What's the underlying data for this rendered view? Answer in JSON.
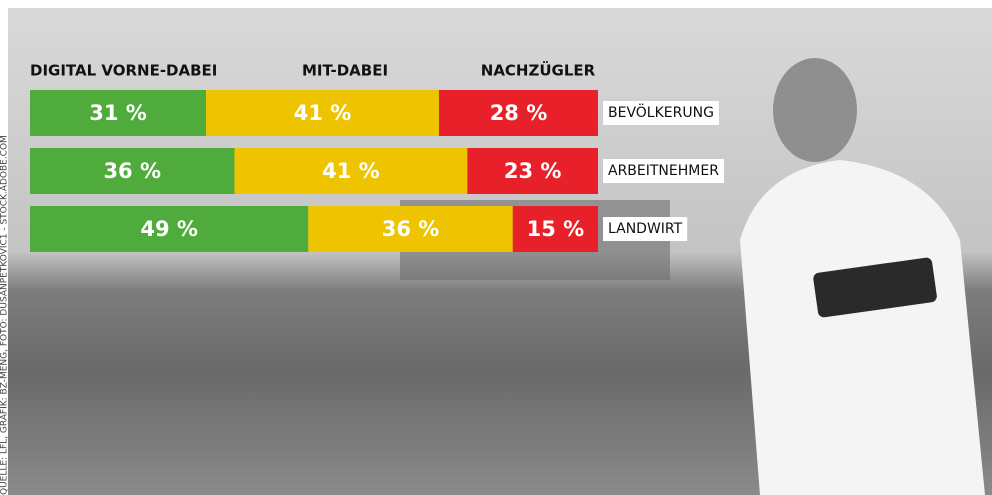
{
  "chart_data": {
    "type": "stacked-bar",
    "categories": [
      "BEVÖLKERUNG",
      "ARBEITNEHMER",
      "LANDWIRT"
    ],
    "series": [
      {
        "name": "DIGITAL VORNE-DABEI",
        "color": "#4fab3c",
        "values": [
          31,
          36,
          49
        ],
        "value_labels": [
          "31 %",
          "36 %",
          "49 %"
        ]
      },
      {
        "name": "MIT-DABEI",
        "color": "#eec400",
        "values": [
          41,
          41,
          36
        ],
        "value_labels": [
          "41 %",
          "41 %",
          "36 %"
        ]
      },
      {
        "name": "NACHZÜGLER",
        "color": "#e8202a",
        "values": [
          28,
          23,
          15
        ],
        "value_labels": [
          "28 %",
          "23 %",
          "15 %"
        ]
      }
    ],
    "source": "QUELLE: LFL, GRAFIK: BZ-MENG, FOTO: DUSANPETKOVIC1 - STOCK.ADOBE.COM"
  }
}
